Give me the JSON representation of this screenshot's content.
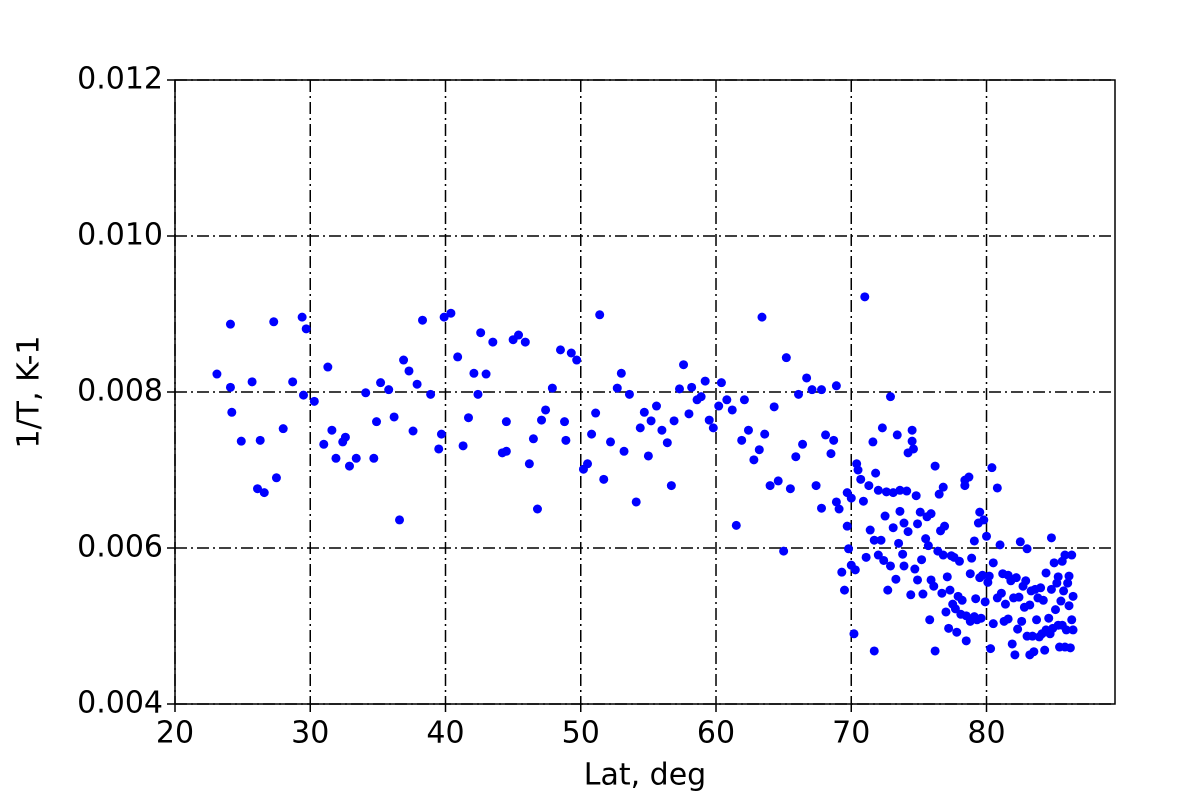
{
  "chart_data": {
    "type": "scatter",
    "xlabel": "Lat, deg",
    "ylabel": "1/T, K-1",
    "x": [
      23.1,
      24.1,
      24.1,
      24.2,
      24.9,
      25.7,
      26.1,
      26.3,
      26.6,
      27.3,
      27.5,
      28.0,
      28.7,
      29.4,
      29.5,
      29.7,
      30.3,
      31.0,
      31.3,
      31.6,
      31.9,
      32.4,
      32.6,
      32.9,
      33.4,
      34.1,
      34.7,
      34.9,
      35.2,
      35.8,
      36.2,
      36.6,
      36.9,
      37.3,
      37.6,
      37.9,
      38.3,
      38.9,
      39.5,
      39.7,
      39.9,
      40.4,
      40.9,
      41.3,
      41.7,
      42.1,
      42.4,
      42.6,
      43.0,
      43.5,
      44.2,
      44.5,
      44.5,
      45.0,
      45.4,
      45.9,
      46.2,
      46.5,
      46.8,
      47.1,
      47.4,
      47.9,
      48.5,
      48.8,
      48.9,
      49.3,
      49.7,
      50.2,
      50.5,
      50.8,
      51.1,
      51.4,
      51.7,
      52.2,
      52.7,
      53.0,
      53.2,
      53.6,
      54.1,
      54.4,
      54.7,
      55.0,
      55.2,
      55.6,
      56.0,
      56.4,
      56.7,
      56.9,
      57.3,
      57.6,
      58.0,
      58.2,
      58.6,
      58.9,
      59.2,
      59.5,
      59.8,
      60.2,
      60.4,
      60.8,
      61.2,
      61.5,
      61.9,
      62.1,
      62.4,
      62.8,
      63.2,
      63.4,
      63.6,
      64.0,
      64.3,
      64.6,
      65.0,
      65.2,
      65.5,
      65.9,
      66.1,
      66.4,
      66.7,
      67.1,
      67.4,
      67.8,
      67.8,
      68.1,
      68.5,
      68.7,
      68.9,
      68.9,
      69.1,
      69.3,
      69.5,
      69.7,
      69.7,
      69.8,
      70.0,
      70.0,
      70.2,
      70.3,
      70.4,
      70.5,
      70.7,
      70.9,
      71.0,
      71.1,
      71.3,
      71.4,
      71.6,
      71.7,
      71.7,
      71.8,
      72.0,
      72.0,
      72.2,
      72.3,
      72.4,
      72.5,
      72.6,
      72.7,
      72.9,
      72.9,
      73.1,
      73.1,
      73.3,
      73.4,
      73.5,
      73.6,
      73.6,
      73.8,
      73.9,
      73.9,
      74.1,
      74.2,
      74.2,
      74.4,
      74.5,
      74.5,
      74.6,
      74.7,
      74.8,
      74.9,
      74.9,
      75.1,
      75.2,
      75.3,
      75.5,
      75.6,
      75.7,
      75.8,
      75.9,
      75.9,
      76.1,
      76.2,
      76.2,
      76.4,
      76.5,
      76.6,
      76.7,
      76.8,
      76.8,
      76.9,
      77.0,
      77.1,
      77.2,
      77.3,
      77.4,
      77.5,
      77.6,
      77.7,
      77.8,
      77.9,
      78.0,
      78.1,
      78.2,
      78.4,
      78.4,
      78.5,
      78.5,
      78.7,
      78.8,
      78.8,
      78.9,
      79.1,
      79.1,
      79.2,
      79.3,
      79.4,
      79.5,
      79.5,
      79.6,
      79.7,
      79.8,
      79.9,
      80.0,
      80.1,
      80.2,
      80.3,
      80.4,
      80.5,
      80.5,
      80.8,
      80.8,
      81.0,
      81.1,
      81.2,
      81.3,
      81.4,
      81.6,
      81.6,
      81.8,
      81.9,
      82.0,
      82.1,
      82.2,
      82.3,
      82.4,
      82.5,
      82.6,
      82.7,
      82.8,
      82.9,
      83.0,
      83.0,
      83.2,
      83.2,
      83.3,
      83.4,
      83.5,
      83.6,
      83.7,
      83.8,
      83.9,
      84.0,
      84.1,
      84.2,
      84.3,
      84.4,
      84.4,
      84.6,
      84.7,
      84.8,
      84.8,
      84.9,
      85.0,
      85.1,
      85.2,
      85.3,
      85.3,
      85.4,
      85.5,
      85.6,
      85.6,
      85.7,
      85.8,
      85.8,
      85.9,
      86.0,
      86.1,
      86.1,
      86.2,
      86.3,
      86.3,
      86.4,
      86.4
    ],
    "values": [
      0.00823,
      0.00887,
      0.00806,
      0.00774,
      0.00737,
      0.00813,
      0.00676,
      0.00738,
      0.00671,
      0.0089,
      0.0069,
      0.00753,
      0.00813,
      0.00896,
      0.00796,
      0.00881,
      0.00788,
      0.00733,
      0.00832,
      0.00751,
      0.00715,
      0.00736,
      0.00742,
      0.00705,
      0.00715,
      0.00799,
      0.00715,
      0.00762,
      0.00812,
      0.00803,
      0.00768,
      0.00636,
      0.00841,
      0.00827,
      0.0075,
      0.0081,
      0.00892,
      0.00797,
      0.00727,
      0.00746,
      0.00896,
      0.00901,
      0.00845,
      0.00731,
      0.00767,
      0.00824,
      0.00797,
      0.00876,
      0.00823,
      0.00864,
      0.00722,
      0.00762,
      0.00724,
      0.00867,
      0.00873,
      0.00864,
      0.00708,
      0.0074,
      0.0065,
      0.00764,
      0.00777,
      0.00805,
      0.00854,
      0.00762,
      0.00738,
      0.0085,
      0.00841,
      0.00701,
      0.00708,
      0.00746,
      0.00773,
      0.00899,
      0.00688,
      0.00736,
      0.00805,
      0.00824,
      0.00724,
      0.00797,
      0.00659,
      0.00754,
      0.00774,
      0.00718,
      0.00763,
      0.00782,
      0.00751,
      0.00735,
      0.0068,
      0.00763,
      0.00804,
      0.00835,
      0.00772,
      0.00806,
      0.0079,
      0.00794,
      0.00814,
      0.00764,
      0.00754,
      0.00782,
      0.00812,
      0.0079,
      0.00777,
      0.00629,
      0.00738,
      0.0079,
      0.00751,
      0.00713,
      0.00726,
      0.00896,
      0.00746,
      0.0068,
      0.00781,
      0.00686,
      0.00596,
      0.00844,
      0.00676,
      0.00717,
      0.00797,
      0.00733,
      0.00818,
      0.00803,
      0.0068,
      0.00803,
      0.00651,
      0.00745,
      0.00721,
      0.00738,
      0.00808,
      0.00659,
      0.0065,
      0.00569,
      0.00546,
      0.00671,
      0.00628,
      0.00599,
      0.00664,
      0.00578,
      0.0049,
      0.00572,
      0.00708,
      0.007,
      0.00688,
      0.0066,
      0.00922,
      0.00588,
      0.0068,
      0.00623,
      0.00736,
      0.0061,
      0.00468,
      0.00696,
      0.00591,
      0.00674,
      0.0061,
      0.00754,
      0.00584,
      0.00641,
      0.00672,
      0.00546,
      0.00794,
      0.00577,
      0.00671,
      0.00626,
      0.0056,
      0.00745,
      0.00606,
      0.00674,
      0.00647,
      0.00592,
      0.00577,
      0.00632,
      0.00673,
      0.00722,
      0.00621,
      0.0054,
      0.00751,
      0.00737,
      0.00727,
      0.00573,
      0.00667,
      0.00559,
      0.00631,
      0.00646,
      0.00585,
      0.00541,
      0.00612,
      0.0064,
      0.00603,
      0.00508,
      0.00559,
      0.00644,
      0.00551,
      0.00468,
      0.00705,
      0.00596,
      0.00669,
      0.00622,
      0.00542,
      0.00678,
      0.00591,
      0.00628,
      0.00518,
      0.00563,
      0.00497,
      0.00546,
      0.0059,
      0.00528,
      0.00588,
      0.00522,
      0.00492,
      0.00538,
      0.00583,
      0.00515,
      0.00533,
      0.0068,
      0.00687,
      0.00481,
      0.00513,
      0.00691,
      0.00567,
      0.00506,
      0.00587,
      0.00609,
      0.00512,
      0.00535,
      0.00508,
      0.00632,
      0.00562,
      0.00646,
      0.0051,
      0.00565,
      0.00636,
      0.00531,
      0.00615,
      0.00556,
      0.00564,
      0.00471,
      0.00703,
      0.00503,
      0.00581,
      0.00677,
      0.00536,
      0.00604,
      0.00542,
      0.00567,
      0.00506,
      0.00528,
      0.00565,
      0.00509,
      0.00558,
      0.00477,
      0.00536,
      0.00463,
      0.00562,
      0.00496,
      0.00537,
      0.00608,
      0.00506,
      0.00551,
      0.00524,
      0.00558,
      0.00599,
      0.00487,
      0.00463,
      0.00527,
      0.00545,
      0.00487,
      0.00467,
      0.00547,
      0.00508,
      0.00536,
      0.00486,
      0.00549,
      0.0049,
      0.00533,
      0.00469,
      0.00495,
      0.00568,
      0.0051,
      0.0049,
      0.00547,
      0.00613,
      0.00497,
      0.00581,
      0.00521,
      0.00555,
      0.00501,
      0.00563,
      0.00473,
      0.00532,
      0.00583,
      0.00501,
      0.00545,
      0.00591,
      0.00473,
      0.00495,
      0.00555,
      0.00526,
      0.00564,
      0.00472,
      0.00508,
      0.00591,
      0.00538,
      0.00495
    ],
    "color": "#0000ff",
    "xlim": [
      20,
      89.5
    ],
    "xticks": [
      20,
      30,
      40,
      50,
      60,
      70,
      80
    ],
    "ylim": [
      0.004,
      0.012
    ],
    "yticks": [
      0.004,
      0.006,
      0.008,
      {
        "value": 0.01,
        "label": "0.010"
      },
      0.012
    ],
    "grid": true
  }
}
